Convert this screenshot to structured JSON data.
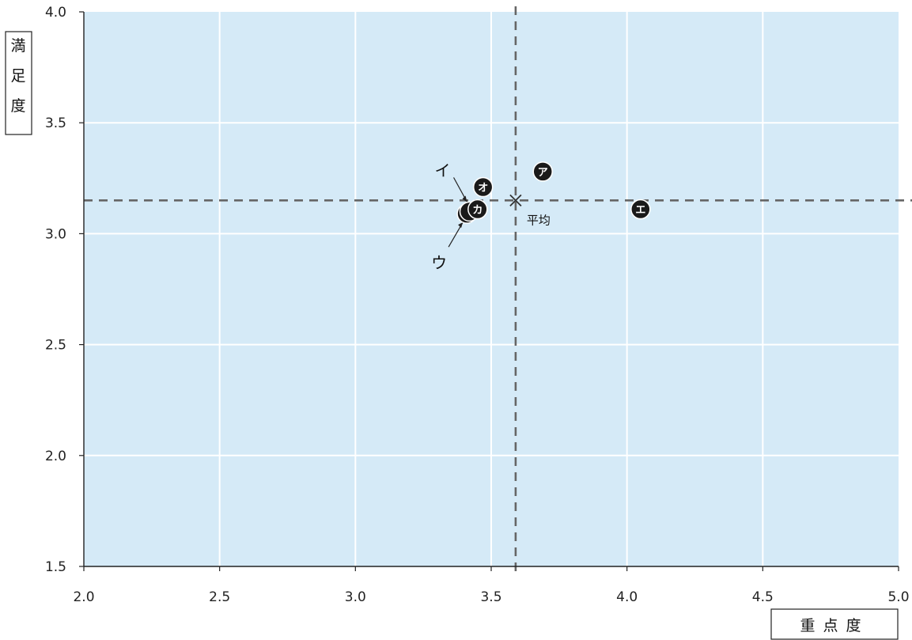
{
  "chart_data": {
    "type": "scatter",
    "xlabel": "重点度",
    "ylabel": "満足度",
    "xlim": [
      2.0,
      5.0
    ],
    "ylim": [
      1.5,
      4.0
    ],
    "xticks": [
      "2.0",
      "2.5",
      "3.0",
      "3.5",
      "4.0",
      "4.5",
      "5.0"
    ],
    "yticks": [
      "1.5",
      "2.0",
      "2.5",
      "3.0",
      "3.5",
      "4.0"
    ],
    "grid": true,
    "background_color": "#d5eaf7",
    "marker_color": "#1a1a1a",
    "average": {
      "label": "平均",
      "x": 3.59,
      "y": 3.15
    },
    "points": [
      {
        "label": "ア",
        "x": 3.69,
        "y": 3.28
      },
      {
        "label": "イ",
        "x": 3.42,
        "y": 3.1
      },
      {
        "label": "ウ",
        "x": 3.41,
        "y": 3.09
      },
      {
        "label": "エ",
        "x": 4.05,
        "y": 3.11
      },
      {
        "label": "オ",
        "x": 3.47,
        "y": 3.21
      },
      {
        "label": "カ",
        "x": 3.45,
        "y": 3.11
      }
    ]
  }
}
